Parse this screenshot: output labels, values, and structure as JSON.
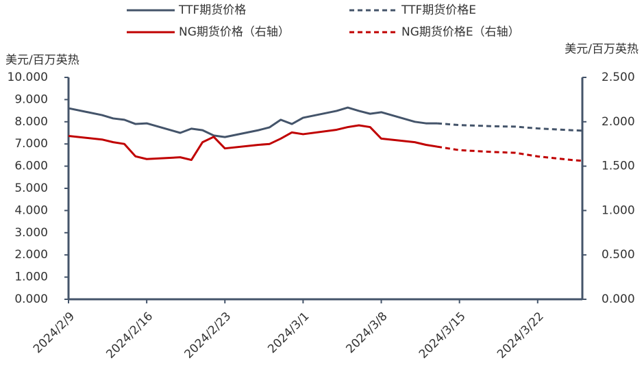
{
  "chart_data": {
    "type": "line",
    "y_label": "美元/百万英热",
    "y2_label": "美元/百万英热",
    "xlim": [
      "2024/2/9",
      "2024/3/26"
    ],
    "xticks": [
      "2024/2/9",
      "2024/2/16",
      "2024/2/23",
      "2024/3/1",
      "2024/3/8",
      "2024/3/15",
      "2024/3/22"
    ],
    "ylim": [
      0,
      10
    ],
    "yticks": [
      {
        "value": 0,
        "label": "0.000"
      },
      {
        "value": 1,
        "label": "1.000"
      },
      {
        "value": 2,
        "label": "2.000"
      },
      {
        "value": 3,
        "label": "3.000"
      },
      {
        "value": 4,
        "label": "4.000"
      },
      {
        "value": 5,
        "label": "5.000"
      },
      {
        "value": 6,
        "label": "6.000"
      },
      {
        "value": 7,
        "label": "7.000"
      },
      {
        "value": 8,
        "label": "8.000"
      },
      {
        "value": 9,
        "label": "9.000"
      },
      {
        "value": 10,
        "label": "10.000"
      }
    ],
    "y2lim": [
      0,
      2.5
    ],
    "y2ticks": [
      {
        "value": 0,
        "label": "0.000"
      },
      {
        "value": 0.5,
        "label": "0.500"
      },
      {
        "value": 1,
        "label": "1.000"
      },
      {
        "value": 1.5,
        "label": "1.500"
      },
      {
        "value": 2,
        "label": "2.000"
      },
      {
        "value": 2.5,
        "label": "2.500"
      }
    ],
    "grid": false,
    "series": [
      {
        "name": "TTF期货价格",
        "color": "#44546a",
        "dashed": false,
        "axis": "y",
        "x": [
          "2024/2/9",
          "2024/2/12",
          "2024/2/13",
          "2024/2/14",
          "2024/2/15",
          "2024/2/16",
          "2024/2/19",
          "2024/2/20",
          "2024/2/21",
          "2024/2/22",
          "2024/2/23",
          "2024/2/26",
          "2024/2/27",
          "2024/2/28",
          "2024/2/29",
          "2024/3/1",
          "2024/3/4",
          "2024/3/5",
          "2024/3/6",
          "2024/3/7",
          "2024/3/8",
          "2024/3/11",
          "2024/3/12",
          "2024/3/13"
        ],
        "values": [
          8.61,
          8.3,
          8.15,
          8.09,
          7.9,
          7.93,
          7.5,
          7.69,
          7.62,
          7.38,
          7.31,
          7.62,
          7.75,
          8.09,
          7.9,
          8.18,
          8.49,
          8.64,
          8.49,
          8.36,
          8.43,
          8.0,
          7.93,
          7.93
        ]
      },
      {
        "name": "TTF期货价格E",
        "color": "#44546a",
        "dashed": true,
        "axis": "y",
        "x": [
          "2024/3/13",
          "2024/3/15",
          "2024/3/18",
          "2024/3/20",
          "2024/3/22",
          "2024/3/25",
          "2024/3/26"
        ],
        "values": [
          7.93,
          7.85,
          7.8,
          7.78,
          7.7,
          7.62,
          7.6
        ]
      },
      {
        "name": "NG期货价格（右轴）",
        "color": "#c00000",
        "dashed": false,
        "axis": "y2",
        "x": [
          "2024/2/9",
          "2024/2/12",
          "2024/2/13",
          "2024/2/14",
          "2024/2/15",
          "2024/2/16",
          "2024/2/19",
          "2024/2/20",
          "2024/2/21",
          "2024/2/22",
          "2024/2/23",
          "2024/2/26",
          "2024/2/27",
          "2024/2/28",
          "2024/2/29",
          "2024/3/1",
          "2024/3/4",
          "2024/3/5",
          "2024/3/6",
          "2024/3/7",
          "2024/3/8",
          "2024/3/11",
          "2024/3/12",
          "2024/3/13"
        ],
        "values": [
          1.84,
          1.8,
          1.77,
          1.75,
          1.61,
          1.58,
          1.6,
          1.57,
          1.77,
          1.83,
          1.7,
          1.74,
          1.75,
          1.81,
          1.88,
          1.86,
          1.91,
          1.94,
          1.96,
          1.94,
          1.81,
          1.77,
          1.74,
          1.72
        ]
      },
      {
        "name": "NG期货价格E（右轴）",
        "color": "#c00000",
        "dashed": true,
        "axis": "y2",
        "x": [
          "2024/3/13",
          "2024/3/15",
          "2024/3/18",
          "2024/3/20",
          "2024/3/22",
          "2024/3/25",
          "2024/3/26"
        ],
        "values": [
          1.72,
          1.68,
          1.66,
          1.65,
          1.61,
          1.57,
          1.56
        ]
      }
    ]
  }
}
